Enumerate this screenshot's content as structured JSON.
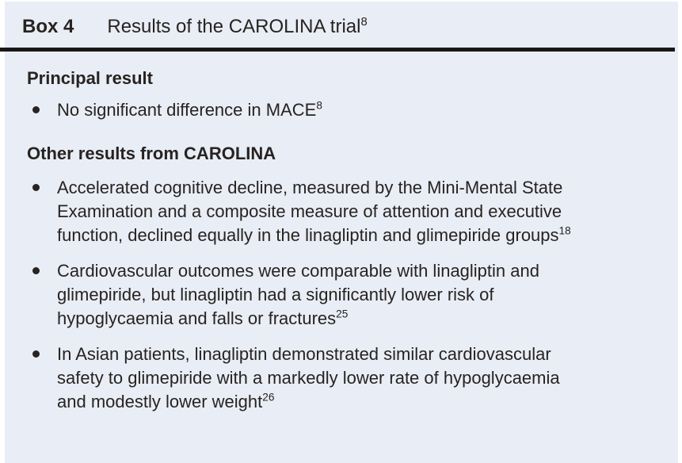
{
  "colors": {
    "box_background": "#e8edf6",
    "divider": "#191717",
    "text": "#272320",
    "page_background": "#ffffff"
  },
  "box": {
    "label": "Box 4",
    "title": "Results of the CAROLINA trial",
    "title_ref": "8",
    "sections": [
      {
        "heading": "Principal result",
        "bullets": [
          {
            "text": "No significant difference in MACE",
            "ref": "8"
          }
        ]
      },
      {
        "heading": "Other results from CAROLINA",
        "bullets": [
          {
            "text": "Accelerated cognitive decline, measured by the Mini-Mental State Examination and a composite measure of attention and executive function, declined equally in the linagliptin and glimepiride groups",
            "ref": "18"
          },
          {
            "text": "Cardiovascular outcomes were comparable with linagliptin and glimepiride, but linagliptin had a significantly lower risk of hypoglycaemia and falls or fractures",
            "ref": "25"
          },
          {
            "text": "In Asian patients, linagliptin demonstrated similar cardiovascular safety to glimepiride with a markedly lower rate of hypoglycaemia and modestly lower weight",
            "ref": "26"
          }
        ]
      }
    ]
  }
}
